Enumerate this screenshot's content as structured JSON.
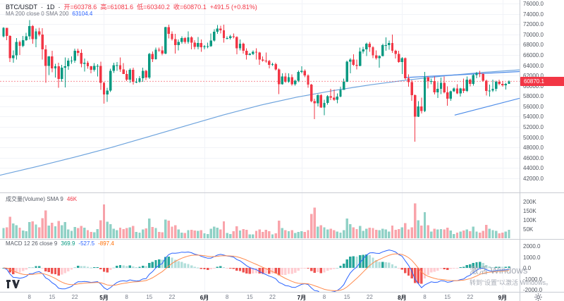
{
  "header": {
    "symbol": "BTC/USDT",
    "dot1": "·",
    "timeframe": "1D",
    "dot2": "·",
    "open": "开=60378.6",
    "high": "高=61081.6",
    "low": "低=60340.2",
    "close": "收=60870.1",
    "change": "+491.5 (+0.81%)",
    "ma_label": "MA 200 close 0 SMA 200",
    "ma_value": "63104.4"
  },
  "volume_pane": {
    "label": "成交量(Volume) SMA 9",
    "value": "46K"
  },
  "macd_pane": {
    "label": "MACD 12 26 close 9",
    "hist": "369.9",
    "macd": "-527.5",
    "signal": "-897.4"
  },
  "axes": {
    "price_ticks": [
      "76000.0",
      "74000.0",
      "72000.0",
      "70000.0",
      "68000.0",
      "66000.0",
      "64000.0",
      "62000.0",
      "60000.0",
      "58000.0",
      "56000.0",
      "54000.0",
      "52000.0",
      "50000.0",
      "48000.0",
      "46000.0",
      "44000.0",
      "42000.0"
    ],
    "last_price": "60870.1",
    "volume_ticks": [
      {
        "label": "200K",
        "v": 200
      },
      {
        "label": "150K",
        "v": 150
      },
      {
        "label": "100K",
        "v": 100
      },
      {
        "label": "50K",
        "v": 50
      }
    ],
    "macd_ticks": [
      "2000.0",
      "1000.0",
      "0.0",
      "-1000.0",
      "-2000.0"
    ],
    "time_ticks": [
      {
        "label": "8",
        "i": 8
      },
      {
        "label": "15",
        "i": 15
      },
      {
        "label": "22",
        "i": 22
      },
      {
        "label": "5月",
        "i": 31,
        "month": true
      },
      {
        "label": "8",
        "i": 38
      },
      {
        "label": "15",
        "i": 45
      },
      {
        "label": "22",
        "i": 52
      },
      {
        "label": "6月",
        "i": 62,
        "month": true
      },
      {
        "label": "8",
        "i": 69
      },
      {
        "label": "15",
        "i": 76
      },
      {
        "label": "22",
        "i": 83
      },
      {
        "label": "7月",
        "i": 92,
        "month": true
      },
      {
        "label": "8",
        "i": 99
      },
      {
        "label": "15",
        "i": 106
      },
      {
        "label": "22",
        "i": 113
      },
      {
        "label": "8月",
        "i": 123,
        "month": true
      },
      {
        "label": "8",
        "i": 130
      },
      {
        "label": "15",
        "i": 137
      },
      {
        "label": "22",
        "i": 144
      },
      {
        "label": "9月",
        "i": 154,
        "month": true
      }
    ]
  },
  "watermark": {
    "line1": "激活 Windows",
    "line2": "转到“设置”以激活 Windows。"
  },
  "colors": {
    "up": "#089981",
    "down": "#f23645",
    "vol_up": "rgba(8,153,129,0.45)",
    "vol_down": "rgba(242,54,69,0.45)",
    "accent_blue": "#2962ff",
    "signal_orange": "#ff8b4e",
    "ma_line": "#6da3dd",
    "trendline": "#4a8ae8",
    "price_line": "rgba(242,54,69,0.55)",
    "hist_grow_above": "#26a69a",
    "hist_fall_above": "#b2dfdb",
    "hist_grow_below": "#ffcdd2",
    "hist_fall_below": "#ef5350",
    "grid": "#f1f3f8"
  },
  "chart_data": {
    "type": "candlestick",
    "symbol": "BTC/USDT",
    "interval": "1D",
    "title": "BTC/USDT 1D with MA200, Volume and MACD(12,26,9)",
    "price_range": [
      42000,
      76000
    ],
    "last_price": 60870.1,
    "macd_params": [
      12,
      26,
      9
    ],
    "volumes_unit": "K",
    "candles": [
      [
        69600,
        71400,
        69400,
        71300
      ],
      [
        71300,
        71300,
        68900,
        69700
      ],
      [
        69700,
        69800,
        64600,
        65400
      ],
      [
        65400,
        66900,
        64500,
        65900
      ],
      [
        65900,
        69300,
        65100,
        68500
      ],
      [
        68500,
        68800,
        66000,
        67800
      ],
      [
        67800,
        69700,
        67500,
        68900
      ],
      [
        68900,
        70300,
        68700,
        69600
      ],
      [
        69600,
        72800,
        69000,
        71600
      ],
      [
        71600,
        71800,
        68200,
        69100
      ],
      [
        69100,
        71100,
        67500,
        70600
      ],
      [
        70600,
        71300,
        69600,
        70000
      ],
      [
        70000,
        71200,
        65100,
        67100
      ],
      [
        67100,
        67900,
        60600,
        63900
      ],
      [
        63900,
        65800,
        62100,
        65700
      ],
      [
        65700,
        66800,
        62600,
        63400
      ],
      [
        63400,
        64300,
        61600,
        63800
      ],
      [
        63800,
        64500,
        59600,
        61300
      ],
      [
        61300,
        64100,
        60800,
        63500
      ],
      [
        63500,
        65500,
        59700,
        63800
      ],
      [
        63800,
        65400,
        63100,
        64900
      ],
      [
        64900,
        65700,
        64300,
        64900
      ],
      [
        64900,
        67200,
        64500,
        66800
      ],
      [
        66800,
        67200,
        65800,
        66400
      ],
      [
        66400,
        67100,
        63600,
        64300
      ],
      [
        64300,
        65300,
        62800,
        64500
      ],
      [
        64500,
        64800,
        63300,
        63800
      ],
      [
        63800,
        63900,
        62400,
        63100
      ],
      [
        63100,
        64400,
        62800,
        63900
      ],
      [
        63900,
        64200,
        61800,
        63900
      ],
      [
        63900,
        64700,
        59200,
        60600
      ],
      [
        60600,
        60800,
        56500,
        58300
      ],
      [
        58300,
        59600,
        56900,
        59100
      ],
      [
        59100,
        63300,
        58800,
        62900
      ],
      [
        62900,
        64500,
        62500,
        64000
      ],
      [
        64000,
        64600,
        62900,
        64000
      ],
      [
        64000,
        65500,
        62700,
        63200
      ],
      [
        63200,
        64400,
        62300,
        62300
      ],
      [
        62300,
        63000,
        60900,
        61200
      ],
      [
        61200,
        63400,
        60600,
        63100
      ],
      [
        63100,
        63500,
        60200,
        60800
      ],
      [
        60800,
        61500,
        60500,
        60800
      ],
      [
        60800,
        61900,
        60600,
        61500
      ],
      [
        61500,
        63500,
        60800,
        62900
      ],
      [
        62900,
        63100,
        61100,
        61600
      ],
      [
        61600,
        66400,
        61300,
        66200
      ],
      [
        66200,
        66700,
        64600,
        65200
      ],
      [
        65200,
        67400,
        65100,
        67000
      ],
      [
        67000,
        67400,
        66600,
        66900
      ],
      [
        66900,
        67700,
        65900,
        66300
      ],
      [
        66300,
        71500,
        66100,
        71400
      ],
      [
        71400,
        71900,
        69200,
        70100
      ],
      [
        70100,
        70600,
        68800,
        69100
      ],
      [
        69100,
        70100,
        66300,
        67900
      ],
      [
        67900,
        69000,
        66900,
        68500
      ],
      [
        68500,
        69600,
        68200,
        69300
      ],
      [
        69300,
        69500,
        68200,
        68500
      ],
      [
        68500,
        70600,
        68200,
        69400
      ],
      [
        69400,
        69600,
        67100,
        68400
      ],
      [
        68400,
        68900,
        67100,
        67600
      ],
      [
        67600,
        69500,
        67100,
        68300
      ],
      [
        68300,
        69000,
        66600,
        67500
      ],
      [
        67500,
        67900,
        67100,
        67700
      ],
      [
        67700,
        68400,
        67300,
        67700
      ],
      [
        67700,
        70200,
        67600,
        68800
      ],
      [
        68800,
        71000,
        68600,
        70500
      ],
      [
        70500,
        71800,
        70100,
        71100
      ],
      [
        71100,
        71700,
        70200,
        70800
      ],
      [
        70800,
        71900,
        68400,
        69300
      ],
      [
        69300,
        69600,
        69000,
        69300
      ],
      [
        69300,
        69900,
        69000,
        69600
      ],
      [
        69600,
        70200,
        69200,
        69500
      ],
      [
        69500,
        69600,
        66100,
        67300
      ],
      [
        67300,
        69000,
        66900,
        68200
      ],
      [
        68200,
        68400,
        66300,
        66800
      ],
      [
        66800,
        67300,
        65100,
        66000
      ],
      [
        66000,
        66400,
        65900,
        66200
      ],
      [
        66200,
        66900,
        66000,
        66600
      ],
      [
        66600,
        67300,
        65100,
        66500
      ],
      [
        66500,
        66600,
        64100,
        65100
      ],
      [
        65100,
        65700,
        64700,
        64900
      ],
      [
        64900,
        66500,
        64500,
        64800
      ],
      [
        64800,
        65000,
        63400,
        64100
      ],
      [
        64100,
        64500,
        63900,
        64200
      ],
      [
        64200,
        64500,
        63000,
        63200
      ],
      [
        63200,
        63400,
        58400,
        60300
      ],
      [
        60300,
        62400,
        60200,
        61800
      ],
      [
        61800,
        62500,
        60600,
        60800
      ],
      [
        60800,
        62400,
        60600,
        61700
      ],
      [
        61700,
        62200,
        60000,
        60300
      ],
      [
        60300,
        61200,
        60000,
        61000
      ],
      [
        61000,
        63000,
        60700,
        62700
      ],
      [
        62700,
        63800,
        62400,
        62900
      ],
      [
        62900,
        63200,
        61700,
        62000
      ],
      [
        62000,
        62200,
        59600,
        60200
      ],
      [
        60200,
        60400,
        56800,
        57000
      ],
      [
        57000,
        57500,
        53500,
        56600
      ],
      [
        56600,
        58400,
        56000,
        58200
      ],
      [
        58200,
        58400,
        55700,
        55800
      ],
      [
        55800,
        57300,
        54300,
        56700
      ],
      [
        56700,
        58200,
        56300,
        58000
      ],
      [
        58000,
        59400,
        57200,
        57700
      ],
      [
        57700,
        59300,
        57100,
        57300
      ],
      [
        57300,
        58500,
        56600,
        57900
      ],
      [
        57900,
        59800,
        57800,
        59200
      ],
      [
        59200,
        61400,
        59200,
        60800
      ],
      [
        60800,
        64900,
        60700,
        64700
      ],
      [
        64700,
        65400,
        62400,
        65100
      ],
      [
        65100,
        66100,
        63900,
        64100
      ],
      [
        64100,
        65100,
        63200,
        63900
      ],
      [
        63900,
        67400,
        63800,
        66700
      ],
      [
        66700,
        67600,
        66300,
        67100
      ],
      [
        67100,
        68400,
        65800,
        68200
      ],
      [
        68200,
        68500,
        66600,
        67500
      ],
      [
        67500,
        67700,
        65400,
        65900
      ],
      [
        65900,
        66900,
        65100,
        65400
      ],
      [
        65400,
        65900,
        63500,
        65800
      ],
      [
        65800,
        68200,
        65700,
        67900
      ],
      [
        67900,
        69400,
        66800,
        67900
      ],
      [
        67900,
        68800,
        67000,
        68300
      ],
      [
        68300,
        70000,
        66400,
        66800
      ],
      [
        66800,
        67000,
        65300,
        66200
      ],
      [
        66200,
        66800,
        64500,
        64600
      ],
      [
        64600,
        65600,
        62300,
        65400
      ],
      [
        65400,
        65500,
        61200,
        61500
      ],
      [
        61500,
        62200,
        59800,
        60700
      ],
      [
        60700,
        61100,
        57100,
        58200
      ],
      [
        58200,
        58300,
        49100,
        54000
      ],
      [
        54000,
        57000,
        53900,
        56000
      ],
      [
        56000,
        57700,
        54600,
        55100
      ],
      [
        55100,
        62700,
        54900,
        61700
      ],
      [
        61700,
        61800,
        59500,
        60900
      ],
      [
        60900,
        61400,
        60300,
        60900
      ],
      [
        60900,
        61800,
        58300,
        58700
      ],
      [
        58700,
        60700,
        57600,
        59400
      ],
      [
        59400,
        61600,
        58400,
        60600
      ],
      [
        60600,
        61800,
        58500,
        58700
      ],
      [
        58700,
        59900,
        56100,
        57500
      ],
      [
        57500,
        59100,
        57100,
        58900
      ],
      [
        58900,
        59700,
        58800,
        59500
      ],
      [
        59500,
        60300,
        58400,
        58500
      ],
      [
        58500,
        59600,
        57900,
        59500
      ],
      [
        59500,
        61400,
        58600,
        59000
      ],
      [
        59000,
        61800,
        58800,
        61200
      ],
      [
        61200,
        61400,
        59900,
        60400
      ],
      [
        60400,
        62300,
        60000,
        62100
      ],
      [
        62100,
        62700,
        61500,
        62400
      ],
      [
        62400,
        62900,
        61700,
        62300
      ],
      [
        62300,
        62500,
        60800,
        61000
      ],
      [
        61000,
        61200,
        58100,
        59000
      ],
      [
        59000,
        60200,
        57900,
        59100
      ],
      [
        59100,
        61200,
        58800,
        59400
      ],
      [
        59400,
        61000,
        58900,
        60800
      ],
      [
        60800,
        61200,
        60100,
        60400
      ],
      [
        60400,
        60900,
        59800,
        60100
      ],
      [
        60100,
        60600,
        59300,
        60400
      ],
      [
        60378.6,
        61081.6,
        60340.2,
        60870.1
      ]
    ],
    "volumes_k": [
      55,
      60,
      118,
      80,
      72,
      58,
      42,
      38,
      88,
      92,
      75,
      60,
      110,
      152,
      70,
      85,
      66,
      95,
      72,
      88,
      48,
      40,
      62,
      55,
      68,
      58,
      45,
      35,
      32,
      50,
      98,
      185,
      90,
      76,
      52,
      44,
      58,
      50,
      56,
      60,
      68,
      34,
      30,
      48,
      54,
      108,
      62,
      56,
      34,
      32,
      102,
      96,
      64,
      72,
      48,
      30,
      28,
      44,
      46,
      42,
      40,
      44,
      26,
      24,
      52,
      64,
      58,
      48,
      92,
      28,
      24,
      38,
      66,
      42,
      50,
      46,
      22,
      22,
      40,
      48,
      34,
      46,
      38,
      22,
      26,
      96,
      56,
      44,
      38,
      44,
      28,
      34,
      38,
      34,
      44,
      132,
      168,
      64,
      72,
      60,
      48,
      52,
      44,
      36,
      30,
      44,
      108,
      76,
      60,
      50,
      68,
      40,
      52,
      58,
      56,
      46,
      44,
      52,
      48,
      36,
      70,
      46,
      50,
      60,
      82,
      48,
      60,
      190,
      98,
      70,
      142,
      72,
      36,
      52,
      48,
      50,
      48,
      58,
      42,
      24,
      30,
      36,
      42,
      48,
      38,
      64,
      36,
      30,
      40,
      74,
      52,
      44,
      40,
      26,
      30,
      36,
      46
    ],
    "ma200": {
      "legend_value": 63104.4,
      "samples_price": [
        42600,
        44300,
        46100,
        48000,
        50100,
        52200,
        54300,
        56200,
        57800,
        59100,
        60200,
        61150,
        61950,
        62600,
        63104
      ]
    },
    "trendlines": [
      {
        "x1f": 0.78,
        "p1": 61600,
        "x2f": 1.005,
        "p2": 62800
      },
      {
        "x1f": 0.875,
        "p1": 54300,
        "x2f": 1.005,
        "p2": 57700
      }
    ]
  }
}
